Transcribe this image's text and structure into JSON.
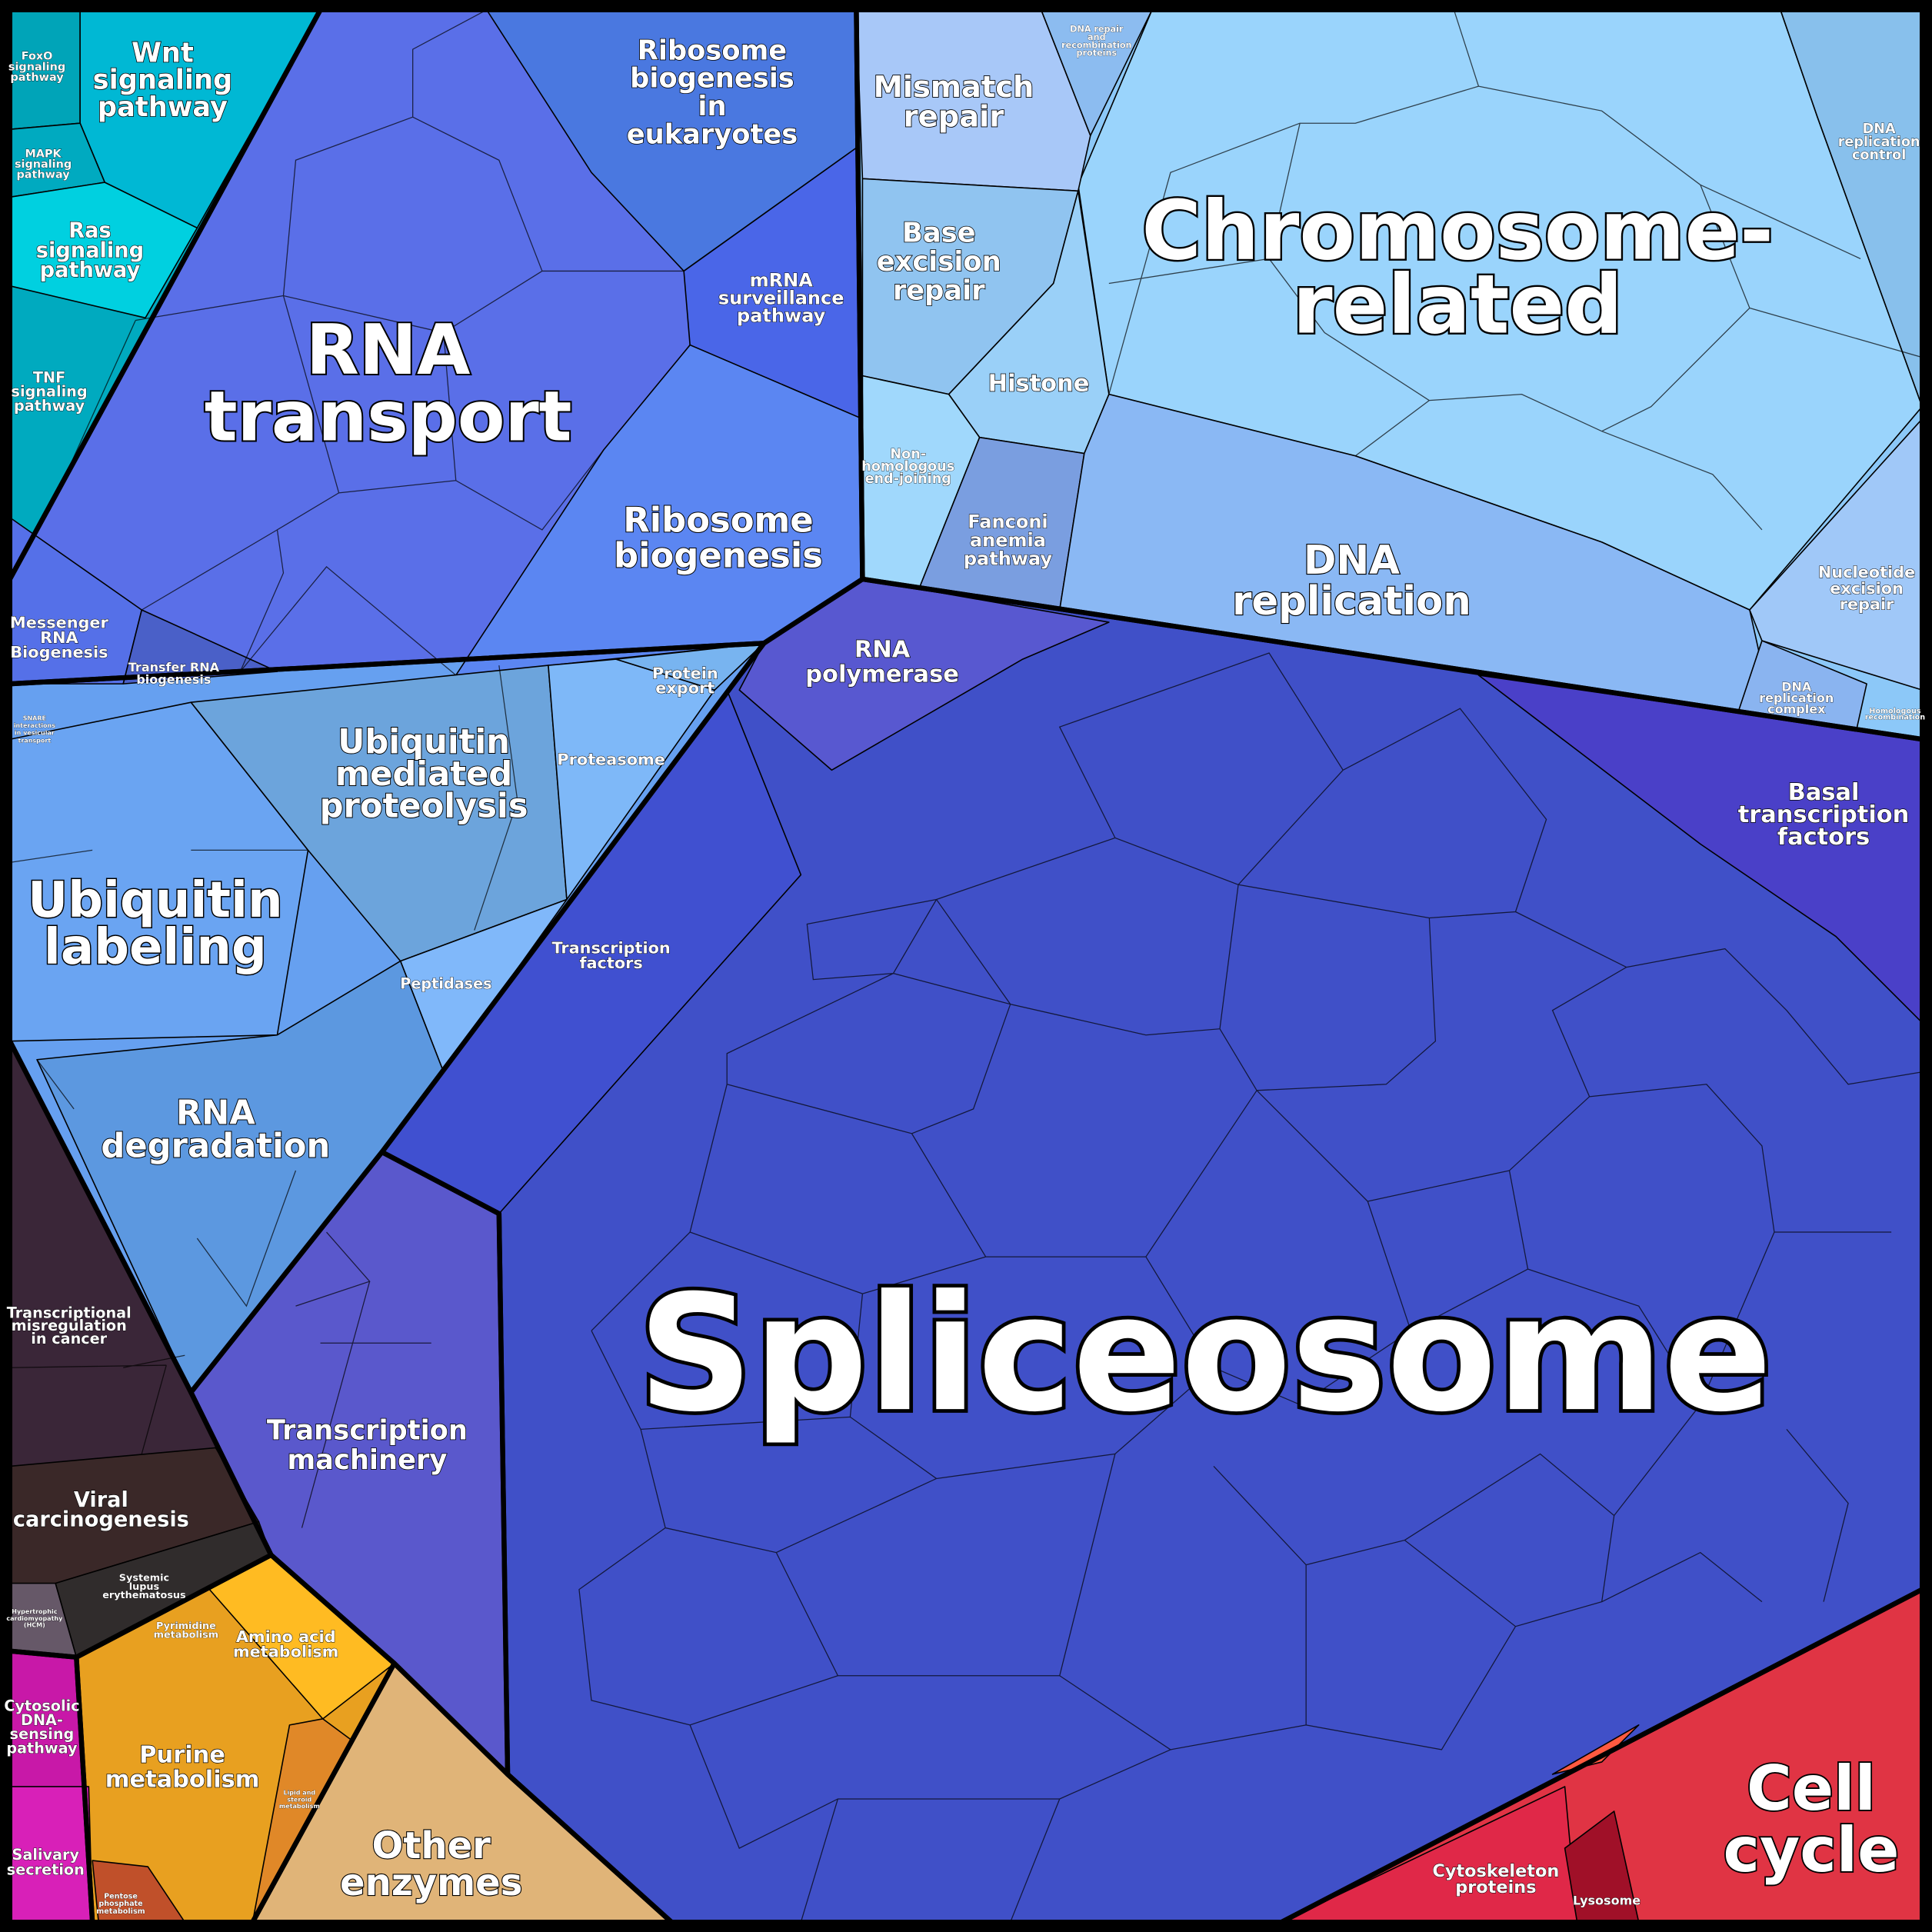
{
  "regions": [
    {
      "label": [
        "Wnt",
        "signaling",
        "pathway"
      ]
    },
    {
      "label": [
        "FoxO",
        "signaling",
        "pathway"
      ]
    },
    {
      "label": [
        "MAPK",
        "signaling",
        "pathway"
      ]
    },
    {
      "label": [
        "Ras",
        "signaling",
        "pathway"
      ]
    },
    {
      "label": [
        "TNF",
        "signaling",
        "pathway"
      ]
    },
    {
      "label": [
        "RNA",
        "transport"
      ]
    },
    {
      "label": [
        "Ribosome",
        "biogenesis",
        "in",
        "eukaryotes"
      ]
    },
    {
      "label": [
        "mRNA",
        "surveillance",
        "pathway"
      ]
    },
    {
      "label": [
        "Ribosome",
        "biogenesis"
      ]
    },
    {
      "label": [
        "Messenger",
        "RNA",
        "Biogenesis"
      ]
    },
    {
      "label": [
        "Transfer RNA",
        "biogenesis"
      ]
    },
    {
      "label": [
        "Mismatch",
        "repair"
      ]
    },
    {
      "label": [
        "DNA repair",
        "and",
        "recombination",
        "proteins"
      ]
    },
    {
      "label": [
        "Chromosome-",
        "related"
      ]
    },
    {
      "label": [
        "DNA",
        "replication",
        "control"
      ]
    },
    {
      "label": [
        "Base",
        "excision",
        "repair"
      ]
    },
    {
      "label": [
        "Histone"
      ]
    },
    {
      "label": [
        "Non-",
        "homologous",
        "end-joining"
      ]
    },
    {
      "label": [
        "Fanconi",
        "anemia",
        "pathway"
      ]
    },
    {
      "label": [
        "DNA",
        "replication"
      ]
    },
    {
      "label": [
        "Nucleotide",
        "excision",
        "repair"
      ]
    },
    {
      "label": [
        "DNA",
        "replication",
        "complex"
      ]
    },
    {
      "label": [
        "Homologous",
        "recombination"
      ]
    },
    {
      "label": [
        "RNA",
        "polymerase"
      ]
    },
    {
      "label": [
        "Protein",
        "export"
      ]
    },
    {
      "label": [
        "Proteasome"
      ]
    },
    {
      "label": [
        "Ubiquitin",
        "mediated",
        "proteolysis"
      ]
    },
    {
      "label": [
        "SNARE",
        "interactions",
        "in vesicular",
        "transport"
      ]
    },
    {
      "label": [
        "Ubiquitin",
        "labeling"
      ]
    },
    {
      "label": [
        "Peptidases"
      ]
    },
    {
      "label": [
        "Basal",
        "transcription",
        "factors"
      ]
    },
    {
      "label": [
        "Transcription",
        "factors"
      ]
    },
    {
      "label": [
        "RNA",
        "degradation"
      ]
    },
    {
      "label": [
        "Spliceosome"
      ]
    },
    {
      "label": [
        "Transcriptional",
        "misregulation",
        "in cancer"
      ]
    },
    {
      "label": [
        "Transcription",
        "machinery"
      ]
    },
    {
      "label": [
        "Viral",
        "carcinogenesis"
      ]
    },
    {
      "label": [
        "Systemic",
        "lupus",
        "erythematosus"
      ]
    },
    {
      "label": [
        "Hypertrophic",
        "cardiomyopathy",
        "(HCM)"
      ]
    },
    {
      "label": [
        "Pyrimidine",
        "metabolism"
      ]
    },
    {
      "label": [
        "Amino acid",
        "metabolism"
      ]
    },
    {
      "label": [
        "Cytosolic",
        "DNA-",
        "sensing",
        "pathway"
      ]
    },
    {
      "label": [
        "Purine",
        "metabolism"
      ]
    },
    {
      "label": [
        "Lipid and",
        "steroid",
        "metabolism"
      ]
    },
    {
      "label": [
        "Other",
        "enzymes"
      ]
    },
    {
      "label": [
        "Salivary",
        "secretion"
      ]
    },
    {
      "label": [
        "Pentose",
        "phosphate",
        "metabolism"
      ]
    },
    {
      "label": [
        "Cell",
        "cycle"
      ]
    },
    {
      "label": [
        "Cytoskeleton",
        "proteins"
      ]
    },
    {
      "label": [
        "Lysosome"
      ]
    }
  ]
}
